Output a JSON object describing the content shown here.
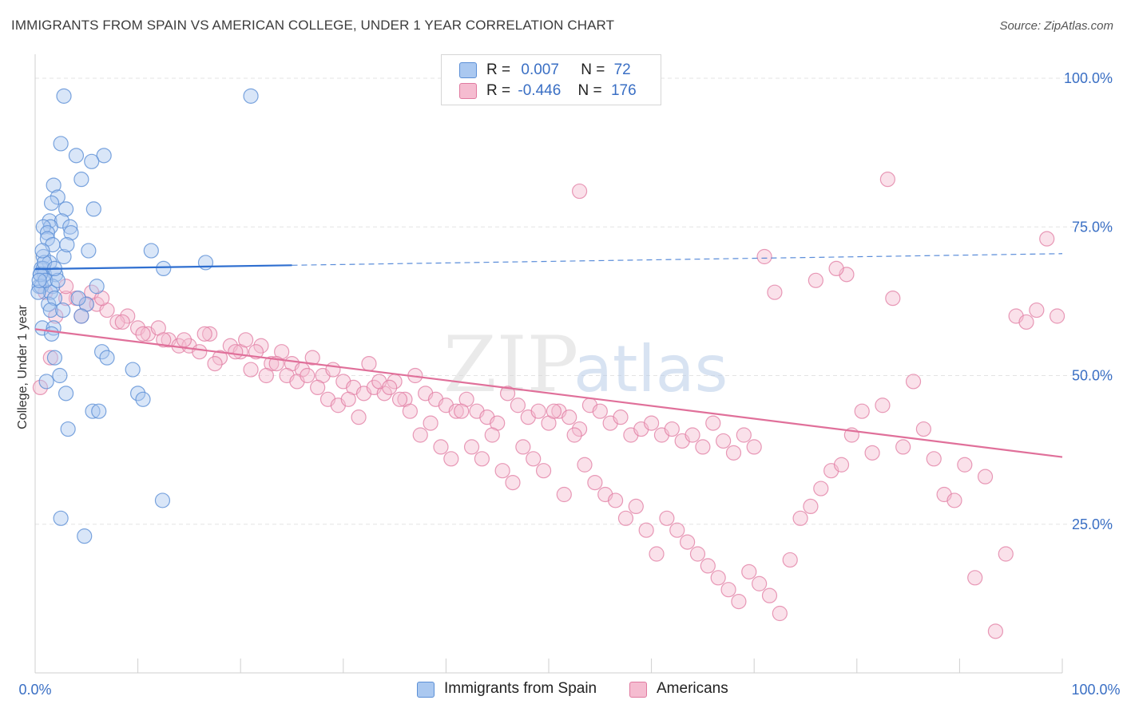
{
  "title": "IMMIGRANTS FROM SPAIN VS AMERICAN COLLEGE, UNDER 1 YEAR CORRELATION CHART",
  "source": "Source: ZipAtlas.com",
  "watermark": {
    "zip": "ZIP",
    "atlas": "atlas"
  },
  "legend": {
    "rows": [
      {
        "r_label": "R =",
        "r_value": "0.007",
        "n_label": "N =",
        "n_value": "72"
      },
      {
        "r_label": "R =",
        "r_value": "-0.446",
        "n_label": "N =",
        "n_value": "176"
      }
    ],
    "series": [
      "Immigrants from Spain",
      "Americans"
    ]
  },
  "colors": {
    "blue_fill": "#aac8f0",
    "blue_stroke": "#5b8fd6",
    "blue_line": "#2f6fd0",
    "pink_fill": "#f5bcd0",
    "pink_stroke": "#e07aa0",
    "pink_line": "#e0709a",
    "axis_label": "#3a6fc4",
    "grid": "#e3e3e3"
  },
  "chart_data": {
    "type": "scatter",
    "title": "IMMIGRANTS FROM SPAIN VS AMERICAN COLLEGE, UNDER 1 YEAR CORRELATION CHART",
    "xlabel": "",
    "ylabel": "College, Under 1 year",
    "xlim": [
      0,
      100
    ],
    "ylim": [
      0,
      100
    ],
    "x_tick_labels": [
      "0.0%",
      "100.0%"
    ],
    "y_tick_labels": [
      "100.0%",
      "75.0%",
      "50.0%",
      "25.0%"
    ],
    "y_ticks": [
      100,
      75,
      50,
      25
    ],
    "series": [
      {
        "name": "Immigrants from Spain",
        "R": 0.007,
        "N": 72,
        "trend": {
          "x0": 0,
          "y0": 67.9,
          "x1": 100,
          "y1": 70.5,
          "solid_until": 25
        },
        "points": [
          [
            2.8,
            97
          ],
          [
            21,
            97
          ],
          [
            2.5,
            89
          ],
          [
            4,
            87
          ],
          [
            6.7,
            87
          ],
          [
            5.5,
            86
          ],
          [
            4.5,
            83
          ],
          [
            1.8,
            82
          ],
          [
            2.2,
            80
          ],
          [
            1.6,
            79
          ],
          [
            3,
            78
          ],
          [
            5.7,
            78
          ],
          [
            1.4,
            76
          ],
          [
            2.6,
            76
          ],
          [
            3.4,
            75
          ],
          [
            1.5,
            75
          ],
          [
            0.8,
            75
          ],
          [
            1.2,
            74
          ],
          [
            3.5,
            74
          ],
          [
            1.2,
            73
          ],
          [
            5.2,
            71
          ],
          [
            11.3,
            71
          ],
          [
            2.8,
            70
          ],
          [
            0.8,
            70
          ],
          [
            1.4,
            69
          ],
          [
            0.6,
            68
          ],
          [
            16.6,
            69
          ],
          [
            0.8,
            68
          ],
          [
            12.5,
            68
          ],
          [
            0.9,
            67
          ],
          [
            2,
            67
          ],
          [
            0.5,
            67
          ],
          [
            0.4,
            65
          ],
          [
            1.7,
            65
          ],
          [
            0.6,
            65
          ],
          [
            1.5,
            64
          ],
          [
            1.3,
            62
          ],
          [
            0.3,
            64
          ],
          [
            5,
            62
          ],
          [
            1.9,
            63
          ],
          [
            1.5,
            61
          ],
          [
            4.5,
            60
          ],
          [
            0.7,
            58
          ],
          [
            1.8,
            58
          ],
          [
            1.6,
            57
          ],
          [
            6.5,
            54
          ],
          [
            1.9,
            53
          ],
          [
            9.5,
            51
          ],
          [
            7,
            53
          ],
          [
            2.4,
            50
          ],
          [
            1.1,
            49
          ],
          [
            3,
            47
          ],
          [
            10,
            47
          ],
          [
            10.5,
            46
          ],
          [
            5.6,
            44
          ],
          [
            6.2,
            44
          ],
          [
            3.2,
            41
          ],
          [
            2.5,
            26
          ],
          [
            12.4,
            29
          ],
          [
            4.8,
            23
          ],
          [
            0.5,
            67
          ],
          [
            1,
            66
          ],
          [
            2.2,
            66
          ],
          [
            0.9,
            69
          ],
          [
            1.7,
            72
          ],
          [
            3.1,
            72
          ],
          [
            0.7,
            71
          ],
          [
            1.9,
            68
          ],
          [
            4.2,
            63
          ],
          [
            6,
            65
          ],
          [
            2.7,
            61
          ],
          [
            0.4,
            66
          ]
        ]
      },
      {
        "name": "Americans",
        "R": -0.446,
        "N": 176,
        "trend": {
          "x0": 0,
          "y0": 57.8,
          "x1": 100,
          "y1": 36.3
        },
        "points": [
          [
            1,
            64
          ],
          [
            4,
            63
          ],
          [
            5,
            62
          ],
          [
            6,
            62
          ],
          [
            7,
            61
          ],
          [
            3,
            63
          ],
          [
            5.5,
            64
          ],
          [
            9,
            60
          ],
          [
            8,
            59
          ],
          [
            10,
            58
          ],
          [
            11,
            57
          ],
          [
            12,
            58
          ],
          [
            13,
            56
          ],
          [
            14,
            55
          ],
          [
            15,
            55
          ],
          [
            16,
            54
          ],
          [
            17,
            57
          ],
          [
            18,
            53
          ],
          [
            19,
            55
          ],
          [
            20,
            54
          ],
          [
            21,
            51
          ],
          [
            22,
            55
          ],
          [
            23,
            52
          ],
          [
            24,
            54
          ],
          [
            25,
            52
          ],
          [
            26,
            51
          ],
          [
            27,
            53
          ],
          [
            28,
            50
          ],
          [
            29,
            51
          ],
          [
            30,
            49
          ],
          [
            31,
            48
          ],
          [
            32,
            47
          ],
          [
            33,
            48
          ],
          [
            34,
            47
          ],
          [
            35,
            49
          ],
          [
            36,
            46
          ],
          [
            37,
            50
          ],
          [
            38,
            47
          ],
          [
            39,
            46
          ],
          [
            40,
            45
          ],
          [
            41,
            44
          ],
          [
            42,
            46
          ],
          [
            43,
            44
          ],
          [
            44,
            43
          ],
          [
            45,
            42
          ],
          [
            46,
            47
          ],
          [
            47,
            45
          ],
          [
            48,
            43
          ],
          [
            49,
            44
          ],
          [
            50,
            42
          ],
          [
            51,
            44
          ],
          [
            52,
            43
          ],
          [
            53,
            41
          ],
          [
            54,
            45
          ],
          [
            55,
            44
          ],
          [
            56,
            42
          ],
          [
            57,
            43
          ],
          [
            58,
            40
          ],
          [
            59,
            41
          ],
          [
            60,
            42
          ],
          [
            61,
            40
          ],
          [
            62,
            41
          ],
          [
            63,
            39
          ],
          [
            64,
            40
          ],
          [
            65,
            38
          ],
          [
            66,
            42
          ],
          [
            67,
            39
          ],
          [
            68,
            37
          ],
          [
            69,
            40
          ],
          [
            70,
            38
          ],
          [
            0.5,
            48
          ],
          [
            1.5,
            53
          ],
          [
            2,
            60
          ],
          [
            3,
            65
          ],
          [
            4.5,
            60
          ],
          [
            6.5,
            63
          ],
          [
            8.5,
            59
          ],
          [
            10.5,
            57
          ],
          [
            12.5,
            56
          ],
          [
            14.5,
            56
          ],
          [
            16.5,
            57
          ],
          [
            17.5,
            52
          ],
          [
            19.5,
            54
          ],
          [
            20.5,
            56
          ],
          [
            21.5,
            54
          ],
          [
            22.5,
            50
          ],
          [
            23.5,
            52
          ],
          [
            24.5,
            50
          ],
          [
            25.5,
            49
          ],
          [
            26.5,
            50
          ],
          [
            27.5,
            48
          ],
          [
            28.5,
            46
          ],
          [
            29.5,
            45
          ],
          [
            30.5,
            46
          ],
          [
            31.5,
            43
          ],
          [
            32.5,
            52
          ],
          [
            33.5,
            49
          ],
          [
            34.5,
            48
          ],
          [
            35.5,
            46
          ],
          [
            36.5,
            44
          ],
          [
            37.5,
            40
          ],
          [
            38.5,
            42
          ],
          [
            39.5,
            38
          ],
          [
            40.5,
            36
          ],
          [
            41.5,
            44
          ],
          [
            42.5,
            38
          ],
          [
            43.5,
            36
          ],
          [
            44.5,
            40
          ],
          [
            45.5,
            34
          ],
          [
            46.5,
            32
          ],
          [
            47.5,
            38
          ],
          [
            48.5,
            36
          ],
          [
            49.5,
            34
          ],
          [
            50.5,
            44
          ],
          [
            51.5,
            30
          ],
          [
            52.5,
            40
          ],
          [
            53.5,
            35
          ],
          [
            54.5,
            32
          ],
          [
            55.5,
            30
          ],
          [
            56.5,
            29
          ],
          [
            57.5,
            26
          ],
          [
            58.5,
            28
          ],
          [
            59.5,
            24
          ],
          [
            60.5,
            20
          ],
          [
            61.5,
            26
          ],
          [
            62.5,
            24
          ],
          [
            63.5,
            22
          ],
          [
            64.5,
            20
          ],
          [
            65.5,
            18
          ],
          [
            66.5,
            16
          ],
          [
            67.5,
            14
          ],
          [
            68.5,
            12
          ],
          [
            69.5,
            17
          ],
          [
            70.5,
            15
          ],
          [
            71.5,
            13
          ],
          [
            72.5,
            10
          ],
          [
            73.5,
            19
          ],
          [
            74.5,
            26
          ],
          [
            75.5,
            28
          ],
          [
            76.5,
            31
          ],
          [
            77.5,
            34
          ],
          [
            78.5,
            35
          ],
          [
            79.5,
            40
          ],
          [
            80.5,
            44
          ],
          [
            81.5,
            37
          ],
          [
            82.5,
            45
          ],
          [
            83.5,
            63
          ],
          [
            84.5,
            38
          ],
          [
            85.5,
            49
          ],
          [
            86.5,
            41
          ],
          [
            87.5,
            36
          ],
          [
            88.5,
            30
          ],
          [
            89.5,
            29
          ],
          [
            90.5,
            35
          ],
          [
            91.5,
            16
          ],
          [
            92.5,
            33
          ],
          [
            93.5,
            7
          ],
          [
            94.5,
            20
          ],
          [
            95.5,
            60
          ],
          [
            96.5,
            59
          ],
          [
            97.5,
            61
          ],
          [
            98.5,
            73
          ],
          [
            99.5,
            60
          ],
          [
            53,
            81
          ],
          [
            83,
            83
          ],
          [
            71,
            70
          ],
          [
            76,
            66
          ],
          [
            79,
            67
          ],
          [
            72,
            64
          ],
          [
            78,
            68
          ]
        ]
      }
    ]
  }
}
